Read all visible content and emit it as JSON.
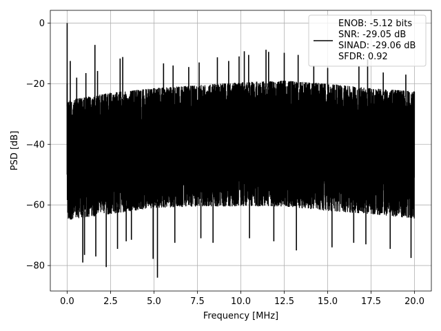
{
  "chart_data": {
    "type": "line",
    "xlabel": "Frequency [MHz]",
    "ylabel": "PSD [dB]",
    "xlim": [
      -0.97,
      20.97
    ],
    "ylim": [
      -88.4,
      4.2
    ],
    "x_ticks": [
      0.0,
      2.5,
      5.0,
      7.5,
      10.0,
      12.5,
      15.0,
      17.5,
      20.0
    ],
    "x_tick_labels": [
      "0.0",
      "2.5",
      "5.0",
      "7.5",
      "10.0",
      "12.5",
      "15.0",
      "17.5",
      "20.0"
    ],
    "y_ticks": [
      0,
      -20,
      -40,
      -60,
      -80
    ],
    "y_tick_labels": [
      "0",
      "−20",
      "−40",
      "−60",
      "−80"
    ],
    "grid": true,
    "legend_position": "top-right",
    "line_color": "#000000",
    "series": [
      {
        "legend_lines": [
          "ENOB: -5.12 bits",
          "SNR: -29.05 dB",
          "SINAD: -29.06 dB",
          "SFDR: 0.92"
        ],
        "x_range": [
          0.0,
          20.0
        ],
        "noise_floor": {
          "upper_envelope": [
            [
              0.0,
              -25.5
            ],
            [
              2.5,
              -23.0
            ],
            [
              5.0,
              -21.5
            ],
            [
              7.5,
              -20.5
            ],
            [
              10.0,
              -19.5
            ],
            [
              12.5,
              -19.0
            ],
            [
              15.0,
              -20.0
            ],
            [
              17.5,
              -21.5
            ],
            [
              20.0,
              -22.5
            ]
          ],
          "lower_envelope": [
            [
              0.0,
              -65.0
            ],
            [
              2.5,
              -63.0
            ],
            [
              5.0,
              -61.0
            ],
            [
              7.5,
              -60.5
            ],
            [
              10.0,
              -60.5
            ],
            [
              12.5,
              -60.5
            ],
            [
              15.0,
              -62.0
            ],
            [
              17.5,
              -63.0
            ],
            [
              20.0,
              -64.5
            ]
          ]
        },
        "peaks": [
          {
            "x": 0.0,
            "y": 0.0
          },
          {
            "x": 0.18,
            "y": -12.5
          },
          {
            "x": 1.6,
            "y": -7.2
          },
          {
            "x": 3.05,
            "y": -11.7
          },
          {
            "x": 3.2,
            "y": -11.2
          },
          {
            "x": 1.75,
            "y": -15.8
          },
          {
            "x": 1.08,
            "y": -16.5
          },
          {
            "x": 0.55,
            "y": -18.0
          },
          {
            "x": 10.2,
            "y": -9.3
          },
          {
            "x": 11.45,
            "y": -8.8
          },
          {
            "x": 11.6,
            "y": -9.5
          },
          {
            "x": 10.45,
            "y": -10.5
          },
          {
            "x": 9.9,
            "y": -11.0
          },
          {
            "x": 12.5,
            "y": -9.8
          },
          {
            "x": 13.3,
            "y": -10.5
          },
          {
            "x": 8.65,
            "y": -11.3
          },
          {
            "x": 9.3,
            "y": -12.5
          },
          {
            "x": 7.6,
            "y": -13.0
          },
          {
            "x": 5.55,
            "y": -13.3
          },
          {
            "x": 6.1,
            "y": -14.0
          },
          {
            "x": 7.0,
            "y": -14.5
          },
          {
            "x": 14.2,
            "y": -14.0
          },
          {
            "x": 15.0,
            "y": -14.8
          },
          {
            "x": 16.8,
            "y": -14.2
          },
          {
            "x": 17.3,
            "y": -12.0
          },
          {
            "x": 18.2,
            "y": -16.3
          },
          {
            "x": 19.5,
            "y": -17.0
          }
        ],
        "troughs": [
          {
            "x": 0.9,
            "y": -79.0
          },
          {
            "x": 2.25,
            "y": -80.5
          },
          {
            "x": 5.2,
            "y": -84.0
          },
          {
            "x": 4.95,
            "y": -77.8
          },
          {
            "x": 1.65,
            "y": -77.0
          },
          {
            "x": 1.0,
            "y": -76.5
          },
          {
            "x": 2.9,
            "y": -74.5
          },
          {
            "x": 3.4,
            "y": -72.0
          },
          {
            "x": 3.7,
            "y": -71.5
          },
          {
            "x": 6.2,
            "y": -72.5
          },
          {
            "x": 7.7,
            "y": -71.0
          },
          {
            "x": 8.4,
            "y": -72.5
          },
          {
            "x": 10.5,
            "y": -71.0
          },
          {
            "x": 11.9,
            "y": -72.0
          },
          {
            "x": 13.2,
            "y": -75.0
          },
          {
            "x": 15.25,
            "y": -74.0
          },
          {
            "x": 16.5,
            "y": -72.5
          },
          {
            "x": 17.2,
            "y": -73.0
          },
          {
            "x": 18.6,
            "y": -74.5
          },
          {
            "x": 19.8,
            "y": -77.5
          }
        ]
      }
    ]
  }
}
